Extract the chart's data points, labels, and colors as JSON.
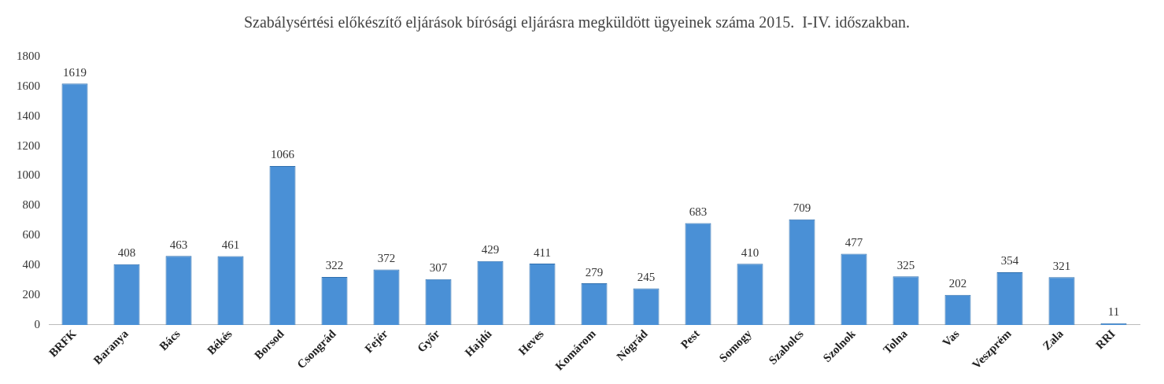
{
  "chart_data": {
    "type": "bar",
    "title": "Szabálysértési előkészítő eljárások bírósági eljárásra megküldött ügyeinek száma 2015.  I-IV. időszakban.",
    "categories": [
      "BRFK",
      "Baranya",
      "Bács",
      "Békés",
      "Borsod",
      "Csongrád",
      "Fejér",
      "Győr",
      "Hajdú",
      "Heves",
      "Komárom",
      "Nógrád",
      "Pest",
      "Somogy",
      "Szabolcs",
      "Szolnok",
      "Tolna",
      "Vas",
      "Veszprém",
      "Zala",
      "RRI"
    ],
    "values": [
      1619,
      408,
      463,
      461,
      1066,
      322,
      372,
      307,
      429,
      411,
      279,
      245,
      683,
      410,
      709,
      477,
      325,
      202,
      354,
      321,
      11
    ],
    "color": "#4a90d6",
    "ylim": [
      0,
      1800
    ],
    "yticks": [
      0,
      200,
      400,
      600,
      800,
      1000,
      1200,
      1400,
      1600,
      1800
    ],
    "grid": false,
    "legend": false,
    "data_labels": true
  }
}
